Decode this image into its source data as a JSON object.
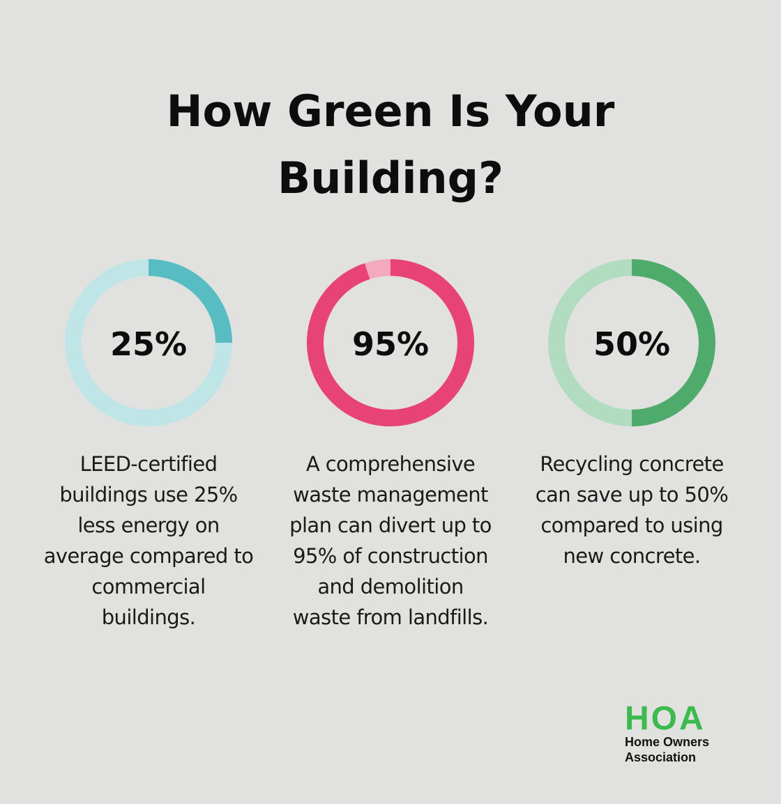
{
  "title": {
    "line1": "How Green Is Your",
    "line2": "Building?"
  },
  "chart_data": [
    {
      "type": "pie",
      "style": "donut",
      "value": 25,
      "label": "25%",
      "colors": {
        "highlight": "#58bcc3",
        "track": "#bfe5e6"
      },
      "description_lines": [
        "LEED-certified",
        "buildings use 25%",
        "less energy on",
        "average compared to",
        "commercial",
        "buildings."
      ]
    },
    {
      "type": "pie",
      "style": "donut",
      "value": 95,
      "label": "95%",
      "colors": {
        "highlight": "#e84378",
        "track": "#f4a9c1"
      },
      "description_lines": [
        "A comprehensive",
        "waste management",
        "plan can divert up to",
        "95% of construction",
        "and demolition",
        "waste from landfills."
      ]
    },
    {
      "type": "pie",
      "style": "donut",
      "value": 50,
      "label": "50%",
      "colors": {
        "highlight": "#4eab6b",
        "track": "#b1dcc0"
      },
      "description_lines": [
        "Recycling concrete",
        "can save up to 50%",
        "compared to using",
        "new concrete."
      ]
    }
  ],
  "logo": {
    "mark": "HOA",
    "line1": "Home Owners",
    "line2": "Association",
    "color": "#3dba4e"
  },
  "colors": {
    "background": "#e1e2e0",
    "text": "#0d0d0d"
  }
}
